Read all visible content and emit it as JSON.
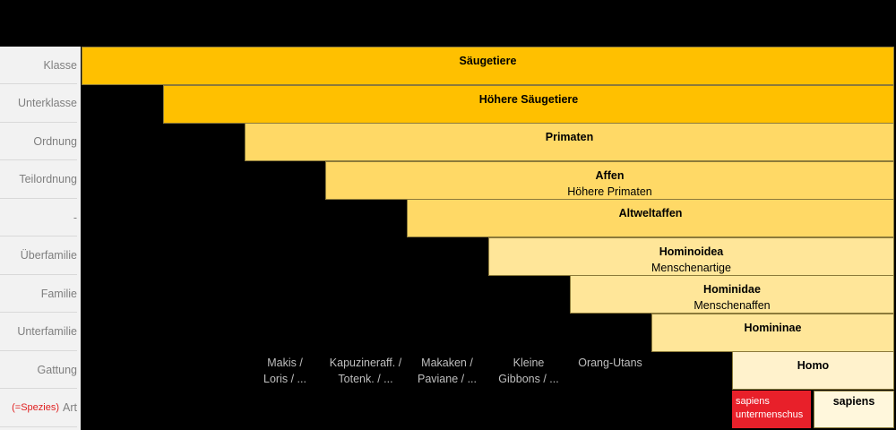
{
  "ranks": [
    {
      "label": "Klasse"
    },
    {
      "label": "Unterklasse"
    },
    {
      "label": "Ordnung"
    },
    {
      "label": "Teilordnung"
    },
    {
      "label": "-"
    },
    {
      "label": "Überfamilie"
    },
    {
      "label": "Familie"
    },
    {
      "label": "Unterfamilie"
    },
    {
      "label": "Gattung"
    },
    {
      "label": "Art",
      "prefix": "(=Spezies)"
    }
  ],
  "taxa": [
    {
      "title": "Säugetiere",
      "subtitle": "",
      "color": "#ffc000"
    },
    {
      "title": "Höhere Säugetiere",
      "subtitle": "",
      "color": "#ffc000"
    },
    {
      "title": "Primaten",
      "subtitle": "",
      "color": "#ffd966"
    },
    {
      "title": "Affen",
      "subtitle": "Höhere Primaten",
      "color": "#ffd966"
    },
    {
      "title": "Altweltaffen",
      "subtitle": "",
      "color": "#ffd966"
    },
    {
      "title": "Hominoidea",
      "subtitle": "Menschenartige",
      "color": "#ffe699"
    },
    {
      "title": "Hominidae",
      "subtitle": "Menschenaffen",
      "color": "#ffe699"
    },
    {
      "title": "Homininae",
      "subtitle": "",
      "color": "#ffe699"
    },
    {
      "title": "Homo",
      "subtitle": "",
      "color": "#fff2cc"
    }
  ],
  "other_genera": [
    {
      "line1": "Makis /",
      "line2": "Loris / ..."
    },
    {
      "line1": "Kapuzineraff. /",
      "line2": "Totenk. / ..."
    },
    {
      "line1": "Makaken /",
      "line2": "Paviane / ..."
    },
    {
      "line1": "Kleine",
      "line2": "Gibbons / ..."
    },
    {
      "line1": "Orang-Utans",
      "line2": ""
    }
  ],
  "species": {
    "red_line1": "sapiens",
    "red_line2": "untermenschus",
    "sapiens": "sapiens"
  }
}
